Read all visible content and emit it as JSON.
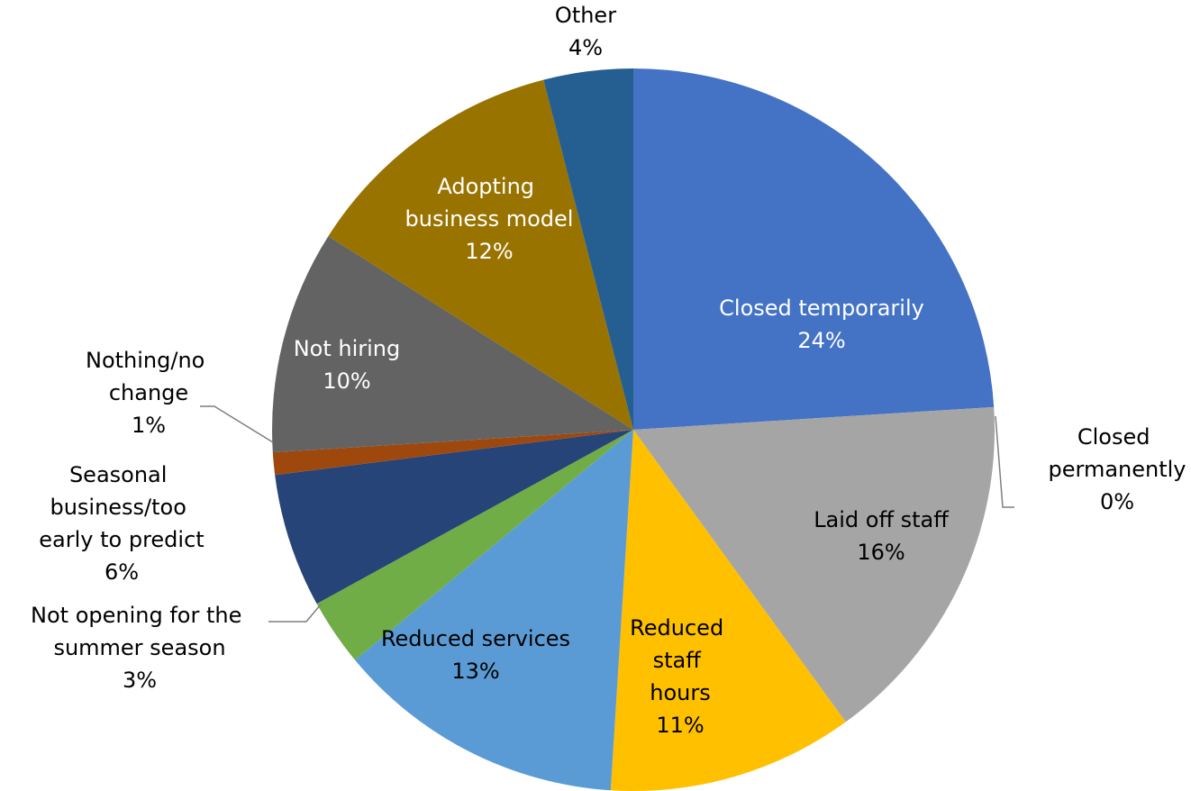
{
  "chart_data": {
    "type": "pie",
    "categories": [
      "Closed temporarily",
      "Closed permanently",
      "Laid off staff",
      "Reduced staff hours",
      "Reduced services",
      "Not opening for the summer season",
      "Seasonal business/too early to predict",
      "Nothing/no change",
      "Not hiring",
      "Adopting business model",
      "Other"
    ],
    "values": [
      24,
      0,
      16,
      11,
      13,
      3,
      6,
      1,
      10,
      12,
      4
    ],
    "value_labels": [
      "24%",
      "0%",
      "16%",
      "11%",
      "13%",
      "3%",
      "6%",
      "1%",
      "10%",
      "12%",
      "4%"
    ],
    "colors": [
      "#4472c4",
      "#ed7d31",
      "#a5a5a5",
      "#ffc000",
      "#5b9bd5",
      "#70ad47",
      "#264478",
      "#9e480e",
      "#636363",
      "#997300",
      "#255e91"
    ]
  }
}
